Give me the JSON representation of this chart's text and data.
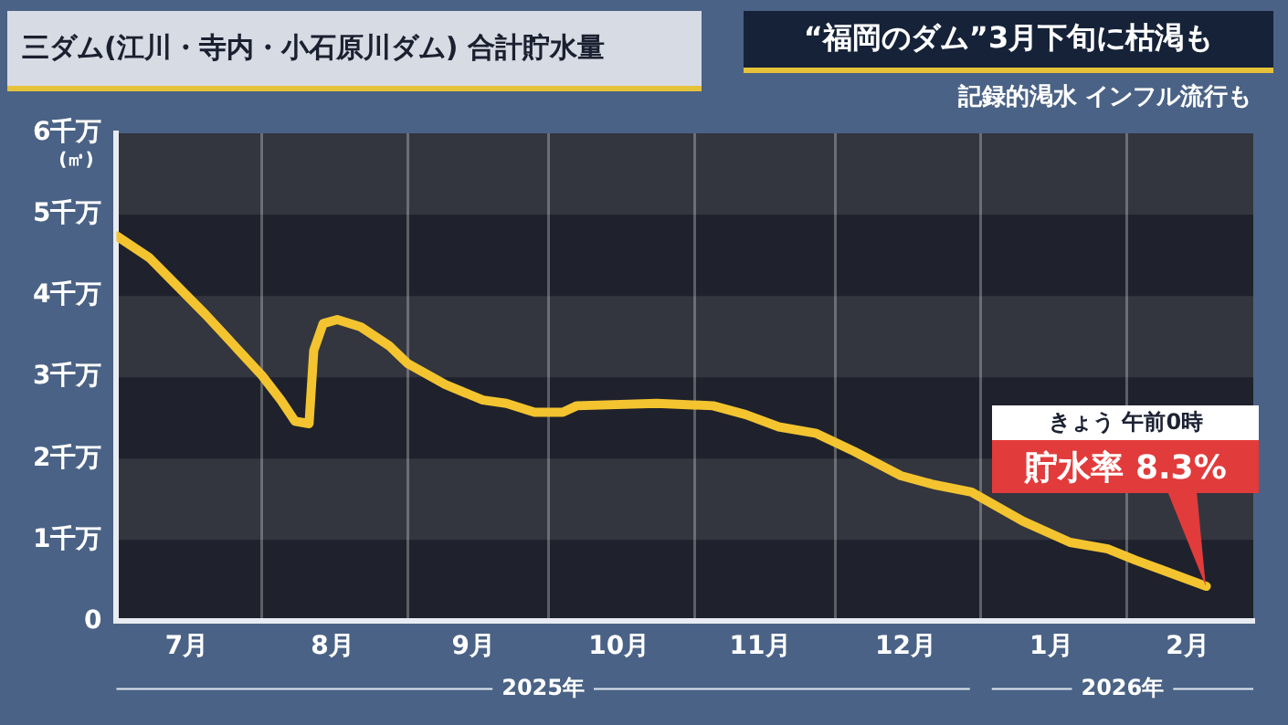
{
  "chart_data": {
    "type": "line",
    "title": "三ダム(江川・寺内・小石原川ダム) 合計貯水量",
    "subtitle": "“福岡のダム”3月下旬に枯渇も",
    "ylabel": "(㎥)",
    "annotations": [
      "記録的渇水 インフル流行も",
      "2025年",
      "2026年",
      "きょう 午前0時",
      {
        "text": "貯水率 8.3%",
        "x": "2026-02-18",
        "y": 0.43
      }
    ],
    "series": [
      {
        "color": "#f3c42f",
        "x": [
          "2025-07-01",
          "2025-07-08",
          "2025-07-20",
          "2025-08-01",
          "2025-08-05",
          "2025-08-08",
          "2025-08-11",
          "2025-08-12",
          "2025-08-14",
          "2025-08-17",
          "2025-08-22",
          "2025-08-28",
          "2025-09-01",
          "2025-09-09",
          "2025-09-17",
          "2025-09-22",
          "2025-09-28",
          "2025-10-04",
          "2025-10-07",
          "2025-10-24",
          "2025-11-05",
          "2025-11-12",
          "2025-11-19",
          "2025-11-27",
          "2025-12-05",
          "2025-12-15",
          "2025-12-22",
          "2025-12-30",
          "2026-01-10",
          "2026-01-20",
          "2026-01-28",
          "2026-02-03",
          "2026-02-18"
        ],
        "values": [
          4.74,
          4.47,
          3.77,
          3.02,
          2.72,
          2.46,
          2.43,
          3.33,
          3.66,
          3.71,
          3.62,
          3.39,
          3.17,
          2.91,
          2.72,
          2.68,
          2.57,
          2.57,
          2.65,
          2.68,
          2.65,
          2.54,
          2.39,
          2.31,
          2.09,
          1.79,
          1.68,
          1.59,
          1.23,
          0.97,
          0.89,
          0.75,
          0.43
        ]
      }
    ],
    "xlim": [
      "2025-07-01",
      "2026-02-28"
    ],
    "xticks": [
      {
        "value": "2025-07-16",
        "label": "7月"
      },
      {
        "value": "2025-08-01",
        "label": null
      },
      {
        "value": "2025-08-16",
        "label": "8月"
      },
      {
        "value": "2025-09-01",
        "label": null
      },
      {
        "value": "2025-09-15",
        "label": "9月"
      },
      {
        "value": "2025-10-01",
        "label": null
      },
      {
        "value": "2025-10-16",
        "label": "10月"
      },
      {
        "value": "2025-11-01",
        "label": null
      },
      {
        "value": "2025-11-15",
        "label": "11月"
      },
      {
        "value": "2025-12-01",
        "label": null
      },
      {
        "value": "2025-12-16",
        "label": "12月"
      },
      {
        "value": "2026-01-01",
        "label": null
      },
      {
        "value": "2026-01-16",
        "label": "1月"
      },
      {
        "value": "2026-02-01",
        "label": null
      },
      {
        "value": "2026-02-14",
        "label": "2月"
      }
    ],
    "ylim": [
      0,
      6
    ],
    "yticks": [
      {
        "value": 0,
        "label": "0"
      },
      {
        "value": 1,
        "label": "1千万"
      },
      {
        "value": 2,
        "label": "2千万"
      },
      {
        "value": 3,
        "label": "3千万"
      },
      {
        "value": 4,
        "label": "4千万"
      },
      {
        "value": 5,
        "label": "5千万"
      },
      {
        "value": 6,
        "label": "6千万"
      }
    ],
    "grid": true,
    "legend": false,
    "marker": "none",
    "line_style": "solid"
  }
}
